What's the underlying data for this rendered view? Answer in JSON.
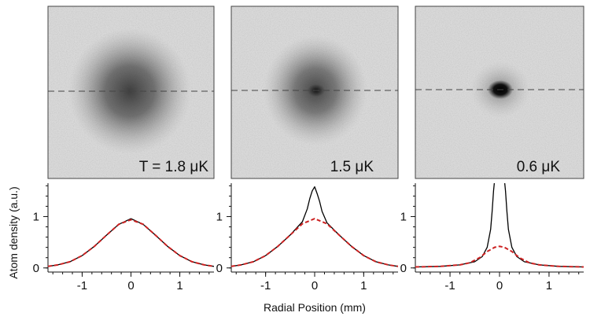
{
  "figure": {
    "xlabel": "Radial Position (mm)",
    "ylabel": "Atom density (a.u.)"
  },
  "chart_data": [
    {
      "type": "line",
      "image_label": "T = 1.8 μK",
      "xlim": [
        -1.7,
        1.7
      ],
      "ylim": [
        -0.08,
        1.65
      ],
      "xticks": [
        -1,
        0,
        1
      ],
      "yticks": [
        0,
        1
      ],
      "grid": false,
      "series": [
        {
          "role": "measured",
          "color": "#000000",
          "x": [
            -1.7,
            -1.5,
            -1.25,
            -1.0,
            -0.75,
            -0.5,
            -0.25,
            0.0,
            0.25,
            0.5,
            0.75,
            1.0,
            1.25,
            1.5,
            1.7
          ],
          "y": [
            0.03,
            0.06,
            0.12,
            0.24,
            0.42,
            0.64,
            0.85,
            0.96,
            0.85,
            0.64,
            0.42,
            0.24,
            0.12,
            0.06,
            0.03
          ]
        },
        {
          "role": "fit",
          "color": "#cc2222",
          "x": [
            -1.7,
            -1.5,
            -1.25,
            -1.0,
            -0.75,
            -0.5,
            -0.25,
            0.0,
            0.25,
            0.5,
            0.75,
            1.0,
            1.25,
            1.5,
            1.7
          ],
          "y": [
            0.03,
            0.06,
            0.12,
            0.24,
            0.42,
            0.64,
            0.85,
            0.94,
            0.85,
            0.64,
            0.42,
            0.24,
            0.12,
            0.06,
            0.03
          ]
        }
      ]
    },
    {
      "type": "line",
      "image_label": "1.5 μK",
      "xlim": [
        -1.7,
        1.7
      ],
      "ylim": [
        -0.08,
        1.65
      ],
      "xticks": [
        -1,
        0,
        1
      ],
      "yticks": [
        0,
        1
      ],
      "grid": false,
      "series": [
        {
          "role": "measured",
          "color": "#000000",
          "x": [
            -1.7,
            -1.5,
            -1.25,
            -1.0,
            -0.75,
            -0.5,
            -0.25,
            -0.15,
            -0.1,
            -0.05,
            0.0,
            0.05,
            0.1,
            0.15,
            0.25,
            0.5,
            0.75,
            1.0,
            1.25,
            1.5,
            1.7
          ],
          "y": [
            0.03,
            0.06,
            0.12,
            0.24,
            0.42,
            0.64,
            0.9,
            1.15,
            1.35,
            1.5,
            1.58,
            1.45,
            1.3,
            1.1,
            0.88,
            0.64,
            0.42,
            0.24,
            0.12,
            0.06,
            0.03
          ]
        },
        {
          "role": "fit",
          "color": "#cc2222",
          "x": [
            -1.7,
            -1.5,
            -1.25,
            -1.0,
            -0.75,
            -0.5,
            -0.25,
            0.0,
            0.25,
            0.5,
            0.75,
            1.0,
            1.25,
            1.5,
            1.7
          ],
          "y": [
            0.03,
            0.06,
            0.12,
            0.24,
            0.42,
            0.64,
            0.86,
            0.96,
            0.86,
            0.64,
            0.42,
            0.24,
            0.12,
            0.06,
            0.03
          ]
        }
      ]
    },
    {
      "type": "line",
      "image_label": "0.6 μK",
      "xlim": [
        -1.7,
        1.7
      ],
      "ylim": [
        -0.08,
        1.65
      ],
      "xticks": [
        -1,
        0,
        1
      ],
      "yticks": [
        0,
        1
      ],
      "grid": false,
      "series": [
        {
          "role": "measured",
          "color": "#000000",
          "x": [
            -1.7,
            -1.2,
            -0.8,
            -0.5,
            -0.35,
            -0.25,
            -0.18,
            -0.15,
            -0.12,
            -0.1,
            0.1,
            0.12,
            0.15,
            0.18,
            0.25,
            0.35,
            0.5,
            0.8,
            1.2,
            1.7
          ],
          "y": [
            0.02,
            0.03,
            0.06,
            0.12,
            0.22,
            0.4,
            0.75,
            1.1,
            1.5,
            1.7,
            1.7,
            1.5,
            1.1,
            0.75,
            0.4,
            0.22,
            0.12,
            0.06,
            0.03,
            0.02
          ]
        },
        {
          "role": "fit",
          "color": "#cc2222",
          "x": [
            -1.7,
            -1.2,
            -0.8,
            -0.6,
            -0.4,
            -0.25,
            -0.1,
            0.0,
            0.1,
            0.25,
            0.4,
            0.6,
            0.8,
            1.2,
            1.7
          ],
          "y": [
            0.02,
            0.03,
            0.06,
            0.1,
            0.2,
            0.32,
            0.4,
            0.42,
            0.4,
            0.32,
            0.2,
            0.1,
            0.06,
            0.03,
            0.02
          ]
        }
      ]
    }
  ]
}
